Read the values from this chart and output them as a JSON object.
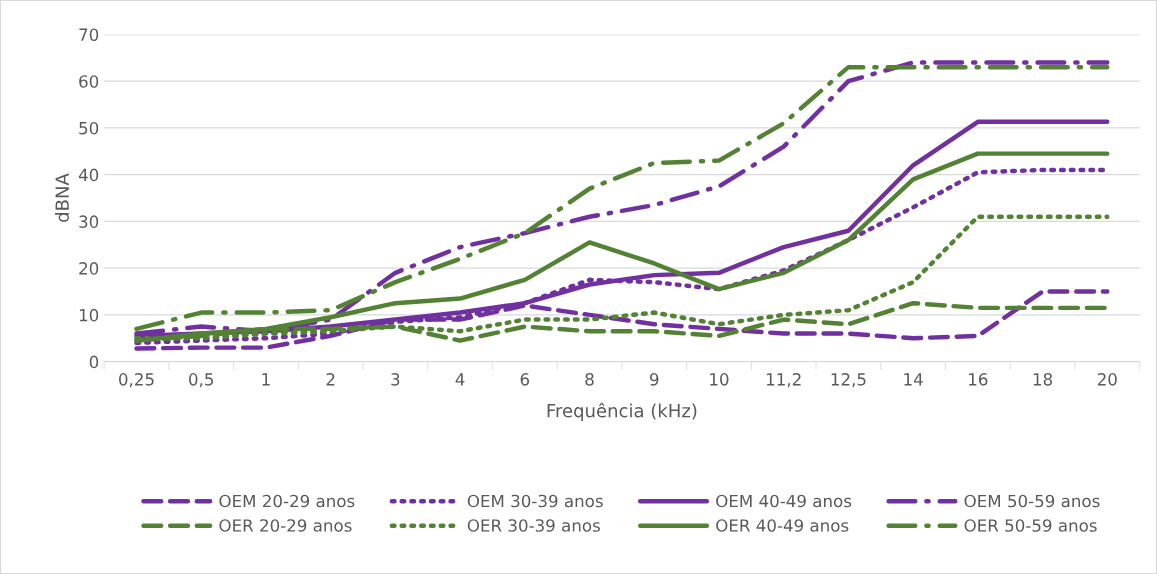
{
  "chart_data": {
    "type": "line",
    "xlabel": "Frequência (kHz)",
    "ylabel": "dBNA",
    "categories": [
      "0,25",
      "0,5",
      "1",
      "2",
      "3",
      "4",
      "6",
      "8",
      "9",
      "10",
      "11,2",
      "12,5",
      "14",
      "16",
      "18",
      "20"
    ],
    "ylim": [
      0,
      70
    ],
    "yticks": [
      0,
      10,
      20,
      30,
      40,
      50,
      60,
      70
    ],
    "grid": "y",
    "legend": "bottom",
    "marker": "none",
    "series": [
      {
        "name": "OEM 20-29 anos",
        "color": "#7030a0",
        "line_style": "dashed",
        "values": [
          2.8,
          3,
          3,
          5.5,
          9,
          9,
          12,
          10,
          8,
          7,
          6,
          6,
          5,
          5.5,
          15,
          15
        ]
      },
      {
        "name": "OEM 30-39 anos",
        "color": "#7030a0",
        "line_style": "dotted",
        "values": [
          4,
          4.5,
          5,
          6,
          8.5,
          9.5,
          12.5,
          17.5,
          17,
          15.5,
          19.5,
          26,
          33,
          40.5,
          41,
          41
        ]
      },
      {
        "name": "OEM 40-49 anos",
        "color": "#7030a0",
        "line_style": "solid",
        "values": [
          5.5,
          6,
          6.5,
          7.5,
          9,
          10.5,
          12.5,
          16.5,
          18.5,
          19,
          24.5,
          28,
          42,
          51.3,
          51.3,
          51.3
        ]
      },
      {
        "name": "OEM 50-59 anos",
        "color": "#7030a0",
        "line_style": "dashdot",
        "values": [
          6,
          7.5,
          6.5,
          9,
          19,
          24.5,
          27.5,
          31,
          33.5,
          37.5,
          46,
          60,
          64,
          64,
          64,
          64
        ]
      },
      {
        "name": "OER 20-29 anos",
        "color": "#548235",
        "line_style": "dashed",
        "values": [
          4.5,
          5.5,
          7,
          7,
          7.5,
          4.5,
          7.5,
          6.5,
          6.5,
          5.5,
          9,
          8,
          12.5,
          11.5,
          11.5,
          11.5
        ]
      },
      {
        "name": "OER 30-39 anos",
        "color": "#548235",
        "line_style": "dotted",
        "values": [
          5,
          5,
          6,
          6.5,
          7.5,
          6.5,
          9,
          9,
          10.5,
          8,
          10,
          11,
          17,
          31,
          31,
          31
        ]
      },
      {
        "name": "OER 40-49 anos",
        "color": "#548235",
        "line_style": "solid",
        "values": [
          4.5,
          6,
          7,
          9.5,
          12.5,
          13.5,
          17.5,
          25.5,
          21,
          15.5,
          19,
          26,
          39,
          44.5,
          44.5,
          44.5
        ]
      },
      {
        "name": "OER 50-59 anos",
        "color": "#548235",
        "line_style": "dashdot",
        "values": [
          7,
          10.5,
          10.5,
          11,
          17,
          22,
          27.5,
          37,
          42.5,
          43,
          51,
          63,
          63,
          63,
          63,
          63
        ]
      }
    ]
  }
}
